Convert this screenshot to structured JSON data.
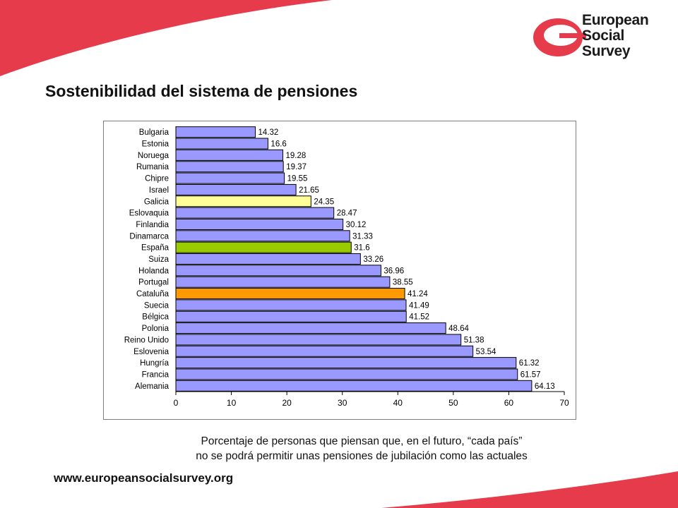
{
  "page": {
    "title": "Sostenibilidad del sistema de pensiones",
    "caption_line1": "Porcentaje de personas que piensan que, en el futuro, “cada país”",
    "caption_line2": "no se podrá permitir unas pensiones de jubilación como las actuales",
    "url": "www.europeansocialsurvey.org"
  },
  "logo": {
    "line1": "European",
    "line2": "Social",
    "line3": "Survey"
  },
  "colors": {
    "brand_red": "#e63b4b",
    "bar_default": "#9999ff",
    "bar_galicia": "#ffff99",
    "bar_espana": "#99cc00",
    "bar_cataluna": "#ff9900"
  },
  "chart_data": {
    "type": "bar",
    "orientation": "horizontal",
    "categories": [
      "Bulgaria",
      "Estonia",
      "Noruega",
      "Rumania",
      "Chipre",
      "Israel",
      "Galicia",
      "Eslovaquia",
      "Finlandia",
      "Dinamarca",
      "España",
      "Suiza",
      "Holanda",
      "Portugal",
      "Cataluña",
      "Suecia",
      "Bélgica",
      "Polonia",
      "Reino Unido",
      "Eslovenia",
      "Hungría",
      "Francia",
      "Alemania"
    ],
    "values": [
      14.32,
      16.6,
      19.28,
      19.37,
      19.55,
      21.65,
      24.35,
      28.47,
      30.12,
      31.33,
      31.6,
      33.26,
      36.96,
      38.55,
      41.24,
      41.49,
      41.52,
      48.64,
      51.38,
      53.54,
      61.32,
      61.57,
      64.13
    ],
    "value_labels": [
      "14.32",
      "16.6",
      "19.28",
      "19.37",
      "19.55",
      "21.65",
      "24.35",
      "28.47",
      "30.12",
      "31.33",
      "31.6",
      "33.26",
      "36.96",
      "38.55",
      "41.24",
      "41.49",
      "41.52",
      "48.64",
      "51.38",
      "53.54",
      "61.32",
      "61.57",
      "64.13"
    ],
    "highlight_colors": {
      "Galicia": "#ffff99",
      "España": "#99cc00",
      "Cataluña": "#ff9900"
    },
    "default_color": "#9999ff",
    "xlim": [
      0,
      70
    ],
    "xticks": [
      0,
      10,
      20,
      30,
      40,
      50,
      60,
      70
    ],
    "xtick_labels": [
      "0",
      "10",
      "20",
      "30",
      "40",
      "50",
      "60",
      "70"
    ],
    "grid": false,
    "legend": "none"
  }
}
